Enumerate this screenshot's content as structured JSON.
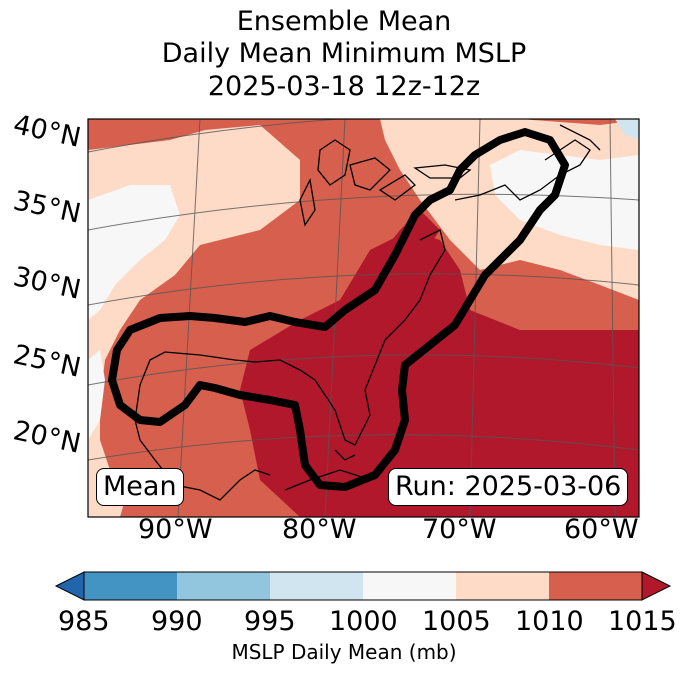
{
  "title": {
    "line1": "Ensemble Mean",
    "line2": "Daily Mean Minimum MSLP",
    "line3": "2025-03-18 12z-12z"
  },
  "map": {
    "latitude_labels": [
      "40°N",
      "35°N",
      "30°N",
      "25°N",
      "20°N"
    ],
    "longitude_labels": [
      "90°W",
      "80°W",
      "70°W",
      "60°W"
    ],
    "mean_box_label": "Mean",
    "run_box_label": "Run: 2025-03-06",
    "contour_description": "black outline",
    "colors": {
      "c1000_1005": "#f7f7f7",
      "c1005_1010": "#fddbc7",
      "c1010_1015": "#d6604d",
      "c1015_plus": "#b2182b",
      "contour": "#000000"
    }
  },
  "colorbar": {
    "label": "MSLP Daily Mean (mb)",
    "ticks": [
      "985",
      "990",
      "995",
      "1000",
      "1005",
      "1010",
      "1015"
    ],
    "bins": [
      {
        "range": "<985",
        "color": "#2166ac"
      },
      {
        "range": "985-990",
        "color": "#4393c3"
      },
      {
        "range": "990-995",
        "color": "#92c5de"
      },
      {
        "range": "995-1000",
        "color": "#d1e5f0"
      },
      {
        "range": "1000-1005",
        "color": "#f7f7f7"
      },
      {
        "range": "1005-1010",
        "color": "#fddbc7"
      },
      {
        "range": "1010-1015",
        "color": "#d6604d"
      },
      {
        "range": ">1015",
        "color": "#b2182b"
      }
    ]
  }
}
